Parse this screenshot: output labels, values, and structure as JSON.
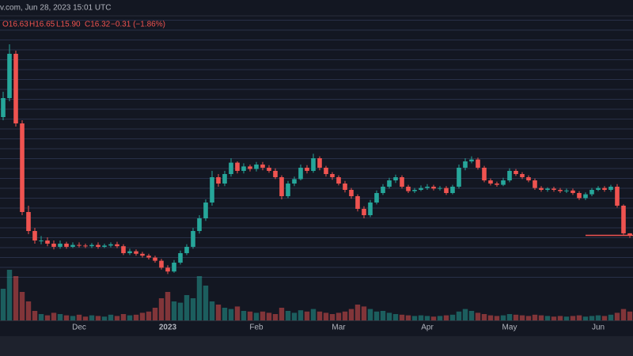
{
  "chart_data": {
    "type": "candlestick",
    "source_line": "v.com, Jun 28, 2023 15:01 UTC",
    "ohlc_legend": [
      "O16.63",
      "H16.65",
      "L15.90",
      "C16.32",
      "−0.31 (−1.86%)"
    ],
    "up_color": "#26a69a",
    "down_color": "#ef5350",
    "ylim": [
      1,
      51
    ],
    "vlim": [
      0,
      100
    ],
    "categories": [
      null,
      null,
      null,
      null,
      null,
      null,
      null,
      null,
      null,
      null,
      null,
      null,
      "Dec",
      null,
      null,
      null,
      null,
      null,
      null,
      null,
      null,
      null,
      null,
      null,
      null,
      null,
      "2023",
      null,
      null,
      null,
      null,
      null,
      null,
      null,
      null,
      null,
      null,
      null,
      null,
      null,
      "Feb",
      null,
      null,
      null,
      null,
      null,
      null,
      null,
      null,
      null,
      null,
      null,
      null,
      "Mar",
      null,
      null,
      null,
      null,
      null,
      null,
      null,
      null,
      null,
      null,
      null,
      null,
      null,
      "Apr",
      null,
      null,
      null,
      null,
      null,
      null,
      null,
      null,
      null,
      null,
      null,
      null,
      "May",
      null,
      null,
      null,
      null,
      null,
      null,
      null,
      null,
      null,
      null,
      null,
      null,
      null,
      "Jun",
      null,
      null,
      null,
      null,
      null
    ],
    "open": [
      35,
      38,
      45,
      34,
      20,
      17,
      15.5,
      15.5,
      15,
      14.5,
      15,
      14.5,
      14.8,
      14.7,
      14.6,
      14.8,
      14.5,
      14.7,
      14.9,
      14.6,
      13.5,
      13.8,
      13.4,
      13.1,
      12.8,
      12.3,
      11.2,
      10.6,
      12,
      13.5,
      14.5,
      17,
      19,
      21.5,
      25.5,
      24.5,
      26,
      27.8,
      26.5,
      27.2,
      26.8,
      27.5,
      27,
      26.5,
      25.5,
      22.5,
      24.5,
      25.2,
      27,
      26.5,
      28.5,
      27,
      26,
      25.5,
      24.5,
      23.5,
      22.5,
      20.5,
      19.5,
      21.5,
      23,
      24,
      25,
      25.5,
      24,
      23.3,
      23.5,
      23.8,
      24,
      23.7,
      23.8,
      23,
      24,
      27,
      28,
      28.3,
      27,
      25,
      24.5,
      24.3,
      25,
      26.5,
      26,
      25.5,
      25,
      23.8,
      23.5,
      23.7,
      23.5,
      23.3,
      23.4,
      23,
      22.2,
      22.8,
      23.5,
      23.8,
      23.5,
      24,
      21,
      16.63
    ],
    "high": [
      39,
      46.5,
      45.5,
      34.5,
      21,
      17.5,
      16.2,
      16,
      15.5,
      15.5,
      15.3,
      15.2,
      15.2,
      15,
      15.1,
      15.2,
      15,
      15.2,
      15.3,
      14.9,
      14.2,
      14.1,
      13.7,
      13.4,
      13.1,
      12.6,
      11.6,
      12.4,
      13.9,
      14.9,
      17.5,
      19.5,
      22,
      26.5,
      26,
      26.5,
      28.5,
      28,
      27.7,
      27.5,
      27.9,
      27.9,
      27.4,
      26.9,
      25.8,
      24.9,
      25.6,
      27.5,
      27.4,
      29.2,
      28.8,
      27.3,
      26.3,
      25.8,
      24.9,
      23.8,
      22.8,
      20.9,
      21.9,
      23.4,
      24.4,
      25.4,
      25.9,
      25.8,
      24.3,
      23.8,
      24.2,
      24.4,
      24.3,
      24.1,
      24.1,
      24.3,
      27.5,
      28.5,
      28.8,
      28.6,
      27.3,
      25.3,
      24.8,
      25.4,
      26.9,
      26.8,
      26.3,
      25.8,
      25.3,
      24.1,
      23.9,
      24,
      23.8,
      23.7,
      23.7,
      23.3,
      23.1,
      23.8,
      24.1,
      24.1,
      24.3,
      24.4,
      21.2,
      16.65
    ],
    "low": [
      34.5,
      37.5,
      33.5,
      19.5,
      16.5,
      15,
      14.9,
      14.6,
      14.1,
      14.2,
      14.2,
      14.3,
      14.4,
      14.3,
      14.3,
      14.2,
      14.3,
      14.4,
      14.3,
      13.2,
      13.2,
      13.1,
      12.8,
      12.5,
      12,
      10.9,
      10.2,
      10.4,
      11.7,
      13.2,
      14.2,
      16.6,
      18.6,
      21,
      24,
      24.1,
      25.6,
      26.1,
      26.1,
      26.4,
      26.4,
      26.6,
      26.2,
      25.2,
      22,
      22.2,
      24.1,
      25,
      26.1,
      26.2,
      26.6,
      25.6,
      25.1,
      24.2,
      23.1,
      22.1,
      20.1,
      19,
      19.2,
      21.2,
      22.7,
      23.7,
      24.6,
      23.7,
      23,
      23,
      23.3,
      23.5,
      23.4,
      23.4,
      22.7,
      22.8,
      23.7,
      26.6,
      27.7,
      26.7,
      24.7,
      24.2,
      24,
      24.1,
      24.7,
      25.7,
      25.2,
      24.7,
      23.5,
      23.2,
      23.2,
      23.2,
      23,
      23,
      22.7,
      21.9,
      21.9,
      22.5,
      23.3,
      23.2,
      23.2,
      20.7,
      16.4,
      15.9
    ],
    "close": [
      38,
      45,
      34,
      20,
      17,
      15.5,
      15.5,
      15,
      14.5,
      15,
      14.5,
      14.8,
      14.7,
      14.6,
      14.8,
      14.5,
      14.7,
      14.9,
      14.6,
      13.5,
      13.8,
      13.4,
      13.1,
      12.8,
      12.3,
      11.2,
      10.6,
      12,
      13.5,
      14.5,
      17,
      19,
      21.5,
      25.5,
      24.5,
      26,
      27.8,
      26.5,
      27.2,
      26.8,
      27.5,
      27,
      26.5,
      25.5,
      22.5,
      24.5,
      25.2,
      27,
      26.5,
      28.5,
      27,
      26,
      25.5,
      24.5,
      23.5,
      22.5,
      20.5,
      19.5,
      21.5,
      23,
      24,
      25,
      25.5,
      24,
      23.3,
      23.5,
      23.8,
      24,
      23.7,
      23.8,
      23,
      24,
      27,
      28,
      28.3,
      27,
      25,
      24.5,
      24.3,
      25,
      26.5,
      26,
      25.5,
      25,
      23.8,
      23.5,
      23.7,
      23.5,
      23.3,
      23.4,
      23,
      22.2,
      22.8,
      23.5,
      23.8,
      23.5,
      24,
      21,
      16.63,
      16.32
    ],
    "volume": [
      50,
      80,
      70,
      45,
      30,
      15,
      10,
      8,
      12,
      10,
      8,
      7,
      9,
      6,
      8,
      7,
      6,
      9,
      7,
      10,
      8,
      9,
      12,
      14,
      20,
      35,
      45,
      30,
      28,
      40,
      35,
      70,
      55,
      30,
      25,
      20,
      18,
      22,
      15,
      14,
      12,
      14,
      12,
      10,
      20,
      15,
      12,
      16,
      14,
      18,
      14,
      12,
      10,
      12,
      14,
      18,
      25,
      22,
      18,
      14,
      15,
      12,
      10,
      9,
      8,
      7,
      8,
      7,
      6,
      7,
      8,
      9,
      14,
      18,
      15,
      12,
      10,
      8,
      7,
      8,
      10,
      9,
      8,
      7,
      9,
      8,
      7,
      6,
      7,
      6,
      7,
      8,
      6,
      7,
      8,
      7,
      9,
      12,
      18,
      14
    ]
  }
}
